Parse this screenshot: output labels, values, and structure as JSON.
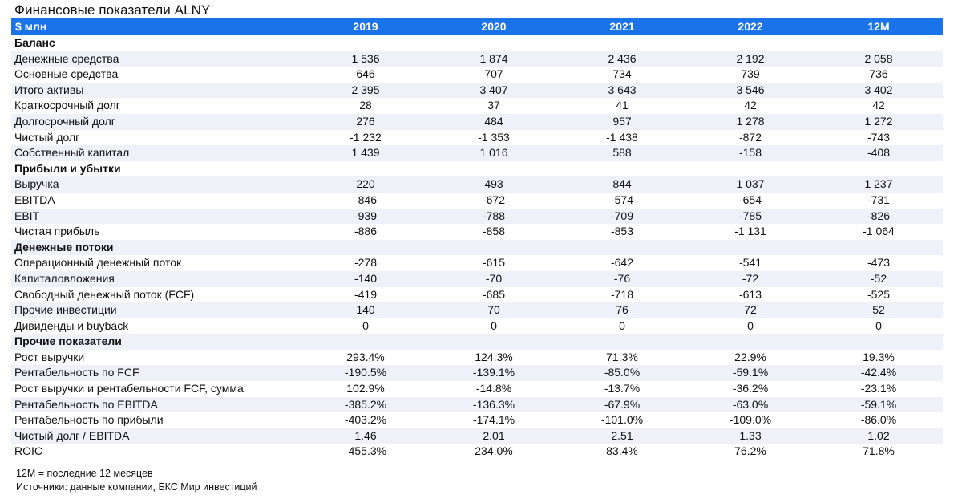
{
  "title": "Финансовые показатели ALNY",
  "header": {
    "label": "$ млн",
    "columns": [
      "2019",
      "2020",
      "2021",
      "2022",
      "12M"
    ]
  },
  "sections": [
    {
      "name": "Баланс",
      "rows": [
        {
          "label": "Денежные средства",
          "values": [
            "1 536",
            "1 874",
            "2 436",
            "2 192",
            "2 058"
          ]
        },
        {
          "label": "Основные средства",
          "values": [
            "646",
            "707",
            "734",
            "739",
            "736"
          ]
        },
        {
          "label": "Итого активы",
          "values": [
            "2 395",
            "3 407",
            "3 643",
            "3 546",
            "3 402"
          ]
        },
        {
          "label": "Краткосрочный долг",
          "values": [
            "28",
            "37",
            "41",
            "42",
            "42"
          ]
        },
        {
          "label": "Долгосрочный долг",
          "values": [
            "276",
            "484",
            "957",
            "1 278",
            "1 272"
          ]
        },
        {
          "label": "Чистый долг",
          "values": [
            "-1 232",
            "-1 353",
            "-1 438",
            "-872",
            "-743"
          ]
        },
        {
          "label": "Собственный капитал",
          "values": [
            "1 439",
            "1 016",
            "588",
            "-158",
            "-408"
          ]
        }
      ]
    },
    {
      "name": "Прибыли и убытки",
      "rows": [
        {
          "label": "Выручка",
          "values": [
            "220",
            "493",
            "844",
            "1 037",
            "1 237"
          ]
        },
        {
          "label": "EBITDA",
          "values": [
            "-846",
            "-672",
            "-574",
            "-654",
            "-731"
          ]
        },
        {
          "label": "EBIT",
          "values": [
            "-939",
            "-788",
            "-709",
            "-785",
            "-826"
          ]
        },
        {
          "label": "Чистая прибыль",
          "values": [
            "-886",
            "-858",
            "-853",
            "-1 131",
            "-1 064"
          ]
        }
      ]
    },
    {
      "name": "Денежные потоки",
      "rows": [
        {
          "label": "Операционный денежный поток",
          "values": [
            "-278",
            "-615",
            "-642",
            "-541",
            "-473"
          ]
        },
        {
          "label": "Капиталовложения",
          "values": [
            "-140",
            "-70",
            "-76",
            "-72",
            "-52"
          ]
        },
        {
          "label": "Свободный денежный поток (FCF)",
          "values": [
            "-419",
            "-685",
            "-718",
            "-613",
            "-525"
          ]
        },
        {
          "label": "Прочие инвестиции",
          "values": [
            "140",
            "70",
            "76",
            "72",
            "52"
          ]
        },
        {
          "label": "Дивиденды и buyback",
          "values": [
            "0",
            "0",
            "0",
            "0",
            "0"
          ]
        }
      ]
    },
    {
      "name": "Прочие показатели",
      "rows": [
        {
          "label": "Рост выручки",
          "values": [
            "293.4%",
            "124.3%",
            "71.3%",
            "22.9%",
            "19.3%"
          ]
        },
        {
          "label": "Рентабельность по FCF",
          "values": [
            "-190.5%",
            "-139.1%",
            "-85.0%",
            "-59.1%",
            "-42.4%"
          ]
        },
        {
          "label": "Рост выручки и рентабельности FCF, сумма",
          "values": [
            "102.9%",
            "-14.8%",
            "-13.7%",
            "-36.2%",
            "-23.1%"
          ]
        },
        {
          "label": "Рентабельность по EBITDA",
          "values": [
            "-385.2%",
            "-136.3%",
            "-67.9%",
            "-63.0%",
            "-59.1%"
          ]
        },
        {
          "label": "Рентабельность по прибыли",
          "values": [
            "-403.2%",
            "-174.1%",
            "-101.0%",
            "-109.0%",
            "-86.0%"
          ]
        },
        {
          "label": "Чистый долг / EBITDA",
          "values": [
            "1.46",
            "2.01",
            "2.51",
            "1.33",
            "1.02"
          ]
        },
        {
          "label": "ROIC",
          "values": [
            "-455.3%",
            "234.0%",
            "83.4%",
            "76.2%",
            "71.8%"
          ]
        }
      ]
    }
  ],
  "footnotes": [
    "12M = последние 12 месяцев",
    "Источники: данные компании, БКС Мир инвестиций"
  ],
  "colors": {
    "header_bg": "#1a73e8",
    "header_text": "#ffffff",
    "row_shade": "#eef2f8"
  }
}
